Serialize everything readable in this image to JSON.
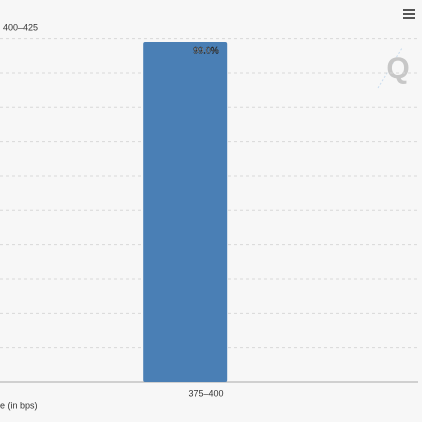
{
  "chart_data": {
    "type": "bar",
    "annotation": "400–425",
    "x_label": "e (in bps)",
    "categories": [
      "375–400"
    ],
    "values": [
      99.0
    ],
    "value_labels": [
      "99.0%"
    ],
    "color": "#4a7fb5",
    "ylim": [
      0,
      100
    ],
    "yticks": [
      0,
      10,
      20,
      30,
      40,
      50,
      60,
      70,
      80,
      90,
      100
    ],
    "grid": true
  }
}
